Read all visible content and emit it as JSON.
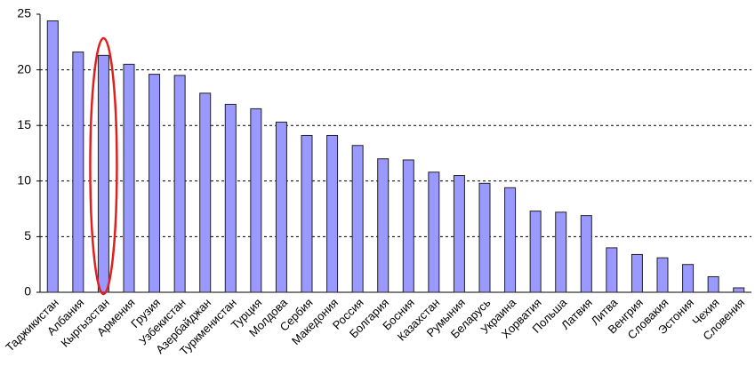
{
  "chart_data": {
    "type": "bar",
    "categories": [
      "Таджикистан",
      "Албания",
      "Кыргызстан",
      "Армения",
      "Грузия",
      "Узбекистан",
      "Азербайджан",
      "Туркменистан",
      "Турция",
      "Молдова",
      "Сербия",
      "Македония",
      "Россия",
      "Болгария",
      "Босния",
      "Казахстан",
      "Румыния",
      "Беларусь",
      "Украина",
      "Хорватия",
      "Польша",
      "Латвия",
      "Литва",
      "Венгрия",
      "Словакия",
      "Эстония",
      "Чехия",
      "Словения"
    ],
    "values": [
      24.4,
      21.6,
      21.3,
      20.5,
      19.6,
      19.5,
      17.9,
      16.9,
      16.5,
      15.3,
      14.1,
      14.1,
      13.2,
      12.0,
      11.9,
      10.8,
      10.5,
      9.8,
      9.4,
      7.3,
      7.2,
      6.9,
      4.0,
      3.4,
      3.1,
      2.5,
      1.4,
      0.4
    ],
    "color": "#9999ff",
    "ylim": [
      0,
      25
    ],
    "yticks": [
      0,
      5,
      10,
      15,
      20,
      25
    ],
    "grid": true
  }
}
